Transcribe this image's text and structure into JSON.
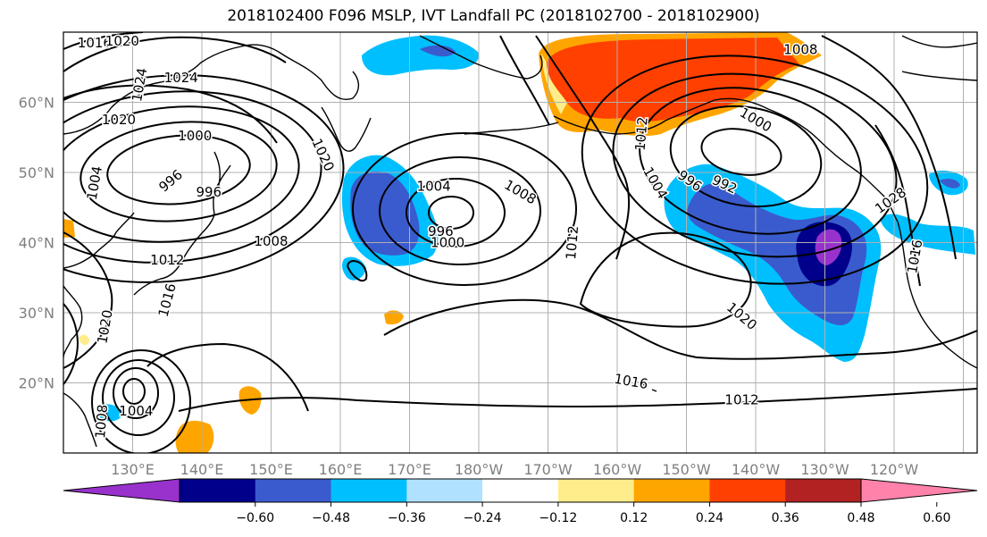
{
  "title": "2018102400 F096 MSLP, IVT Landfall PC (2018102700 - 2018102900)",
  "map": {
    "lon_range": [
      120,
      252
    ],
    "lat_range": [
      10,
      70
    ],
    "grid_lon_step": 10,
    "grid_lat_step": 10,
    "lat_ticks": [
      {
        "lat": 20,
        "label": "20°N"
      },
      {
        "lat": 30,
        "label": "30°N"
      },
      {
        "lat": 40,
        "label": "40°N"
      },
      {
        "lat": 50,
        "label": "50°N"
      },
      {
        "lat": 60,
        "label": "60°N"
      }
    ],
    "lon_ticks": [
      {
        "lon": 130,
        "label": "130°E"
      },
      {
        "lon": 140,
        "label": "140°E"
      },
      {
        "lon": 150,
        "label": "150°E"
      },
      {
        "lon": 160,
        "label": "160°E"
      },
      {
        "lon": 170,
        "label": "170°E"
      },
      {
        "lon": 180,
        "label": "180°W"
      },
      {
        "lon": 190,
        "label": "170°W"
      },
      {
        "lon": 200,
        "label": "160°W"
      },
      {
        "lon": 210,
        "label": "150°W"
      },
      {
        "lon": 220,
        "label": "140°W"
      },
      {
        "lon": 230,
        "label": "130°W"
      },
      {
        "lon": 240,
        "label": "120°W"
      }
    ],
    "contour_labels": [
      {
        "text": "1016",
        "lon": 124.5,
        "lat": 68.5
      },
      {
        "text": "1020",
        "lon": 128.5,
        "lat": 68.7
      },
      {
        "text": "1024",
        "lon": 137,
        "lat": 63.5
      },
      {
        "text": "1024",
        "lon": 131,
        "lat": 62.5,
        "rot": -80
      },
      {
        "text": "1020",
        "lon": 128,
        "lat": 57.5
      },
      {
        "text": "1000",
        "lon": 139,
        "lat": 55.2
      },
      {
        "text": "1004",
        "lon": 124.5,
        "lat": 48.5,
        "rot": -80
      },
      {
        "text": "996",
        "lon": 135.5,
        "lat": 48.8,
        "rot": -40
      },
      {
        "text": "996",
        "lon": 141,
        "lat": 47.2
      },
      {
        "text": "1020",
        "lon": 157.5,
        "lat": 52.5,
        "rot": 65
      },
      {
        "text": "1008",
        "lon": 150,
        "lat": 40.2
      },
      {
        "text": "1012",
        "lon": 135,
        "lat": 37.5
      },
      {
        "text": "1016",
        "lon": 135,
        "lat": 31.8,
        "rot": -75
      },
      {
        "text": "1020",
        "lon": 126,
        "lat": 28,
        "rot": -80
      },
      {
        "text": "1004",
        "lon": 173.5,
        "lat": 48
      },
      {
        "text": "996",
        "lon": 174.5,
        "lat": 41.6
      },
      {
        "text": "1000",
        "lon": 175.5,
        "lat": 40
      },
      {
        "text": "1008",
        "lon": 186,
        "lat": 47.2,
        "rot": 30
      },
      {
        "text": "1012",
        "lon": 193.5,
        "lat": 40,
        "rot": -85
      },
      {
        "text": "1012",
        "lon": 203.5,
        "lat": 55.5,
        "rot": -85
      },
      {
        "text": "1004",
        "lon": 205.5,
        "lat": 48.5,
        "rot": 60
      },
      {
        "text": "996",
        "lon": 210.5,
        "lat": 48.8,
        "rot": 35
      },
      {
        "text": "992",
        "lon": 215.5,
        "lat": 48.3,
        "rot": 25
      },
      {
        "text": "1000",
        "lon": 220,
        "lat": 57.5,
        "rot": 30
      },
      {
        "text": "1020",
        "lon": 218,
        "lat": 29.5,
        "rot": 40
      },
      {
        "text": "1016",
        "lon": 202,
        "lat": 20.2,
        "rot": 10
      },
      {
        "text": "1012",
        "lon": 218,
        "lat": 17.6
      },
      {
        "text": "1004",
        "lon": 130.5,
        "lat": 16
      },
      {
        "text": "1008",
        "lon": 125.5,
        "lat": 14.5,
        "rot": -85
      },
      {
        "text": "1008",
        "lon": 226.5,
        "lat": 67.5
      },
      {
        "text": "1028",
        "lon": 239.5,
        "lat": 46,
        "rot": -35
      },
      {
        "text": "1016",
        "lon": 243,
        "lat": 38,
        "rot": -80
      }
    ]
  },
  "colorbar": {
    "colors": [
      "#9932cc",
      "#00008b",
      "#3a5bcd",
      "#00bfff",
      "#b0e2ff",
      "#ffffff",
      "#ffec8b",
      "#ffa500",
      "#ff4000",
      "#b22222",
      "#ff82ab"
    ],
    "ticks": [
      "−0.60",
      "−0.48",
      "−0.36",
      "−0.24",
      "−0.12",
      "0.12",
      "0.24",
      "0.36",
      "0.48",
      "0.60"
    ],
    "edge_color": "#000000"
  }
}
